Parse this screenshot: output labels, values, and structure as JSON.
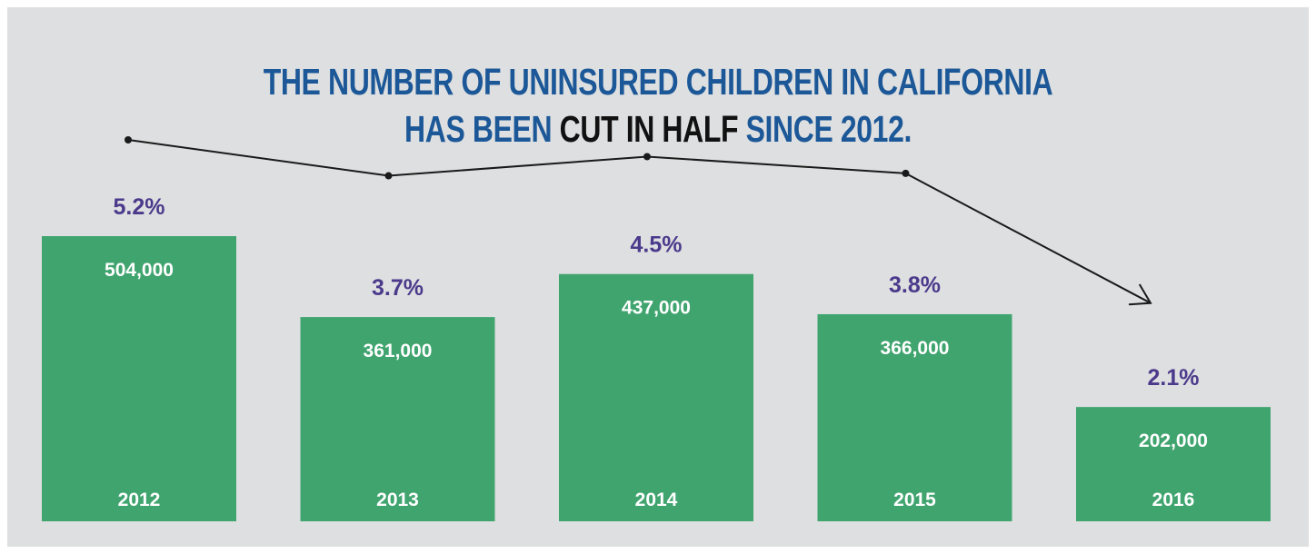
{
  "title": {
    "line1": "THE NUMBER OF UNINSURED CHILDREN IN CALIFORNIA",
    "line2_prefix": "HAS BEEN ",
    "line2_highlight": "CUT IN HALF",
    "line2_suffix": " SINCE 2012."
  },
  "colors": {
    "background": "#dedfe0",
    "bar": "#40a46f",
    "title": "#1c5898",
    "title_highlight": "#111111",
    "percent_label": "#4b3a8c",
    "bar_text": "#ffffff",
    "trend_line": "#1a1a1a"
  },
  "chart_data": {
    "type": "bar",
    "categories": [
      "2012",
      "2013",
      "2014",
      "2015",
      "2016"
    ],
    "values": [
      504000,
      361000,
      437000,
      366000,
      202000
    ],
    "value_labels": [
      "504,000",
      "361,000",
      "437,000",
      "366,000",
      "202,000"
    ],
    "percent_values": [
      5.2,
      3.7,
      4.5,
      3.8,
      2.1
    ],
    "percent_labels": [
      "5.2%",
      "3.7%",
      "4.5%",
      "3.8%",
      "2.1%"
    ],
    "trend_line": "decreasing, ends with arrow",
    "grid": false
  }
}
